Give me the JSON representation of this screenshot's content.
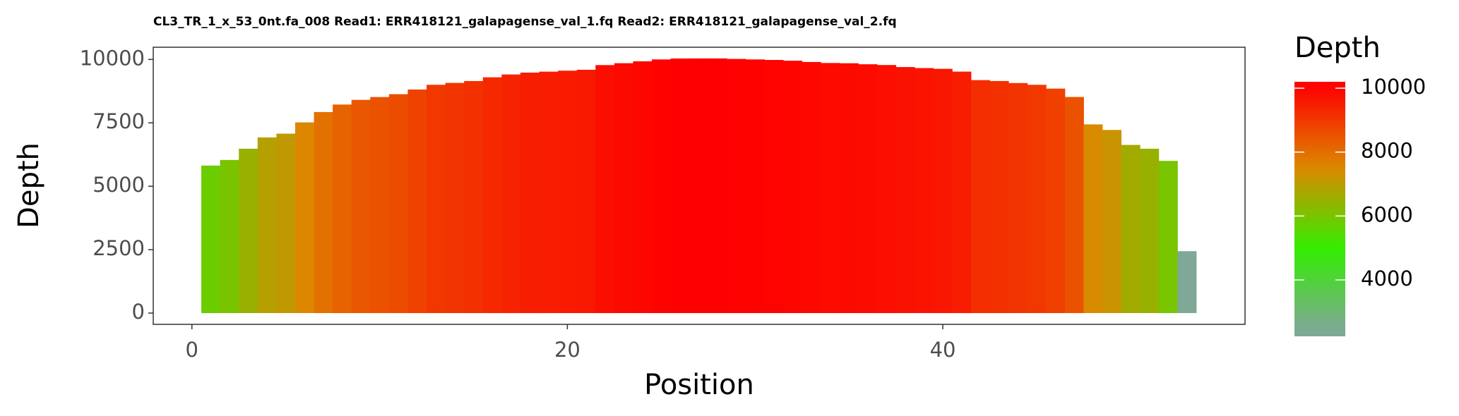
{
  "chart_data": {
    "type": "bar",
    "title": "CL3_TR_1_x_53_0nt.fa_008 Read1: ERR418121_galapagense_val_1.fq Read2: ERR418121_galapagense_val_2.fq",
    "x_label": "Position",
    "y_label": "Depth",
    "legend_title": "Depth",
    "x": [
      1,
      2,
      3,
      4,
      5,
      6,
      7,
      8,
      9,
      10,
      11,
      12,
      13,
      14,
      15,
      16,
      17,
      18,
      19,
      20,
      21,
      22,
      23,
      24,
      25,
      26,
      27,
      28,
      29,
      30,
      31,
      32,
      33,
      34,
      35,
      36,
      37,
      38,
      39,
      40,
      41,
      42,
      43,
      44,
      45,
      46,
      47,
      48,
      49,
      50,
      51,
      52,
      53
    ],
    "values": [
      5815,
      6037,
      6481,
      6926,
      7074,
      7518,
      7926,
      8222,
      8407,
      8518,
      8630,
      8815,
      9000,
      9074,
      9148,
      9296,
      9407,
      9481,
      9519,
      9556,
      9593,
      9778,
      9852,
      9926,
      10000,
      10037,
      10040,
      10040,
      10020,
      10000,
      9980,
      9950,
      9900,
      9860,
      9850,
      9810,
      9780,
      9700,
      9660,
      9630,
      9520,
      9185,
      9150,
      9070,
      9000,
      8850,
      8520,
      7440,
      7220,
      6630,
      6480,
      6000,
      2440
    ],
    "xlim": [
      -2.06,
      56.1
    ],
    "ylim": [
      -444,
      10481
    ],
    "xticks": [
      0,
      20,
      40
    ],
    "yticks": [
      0,
      2500,
      5000,
      7500,
      10000
    ],
    "grid": false,
    "fill_gradient": [
      "#7fa896",
      "#33ee00",
      "#dd8800",
      "#ff0000"
    ],
    "colorbar_lim": [
      2235,
      10200
    ],
    "colorbar_ticks": [
      4000,
      6000,
      8000,
      10000
    ]
  }
}
